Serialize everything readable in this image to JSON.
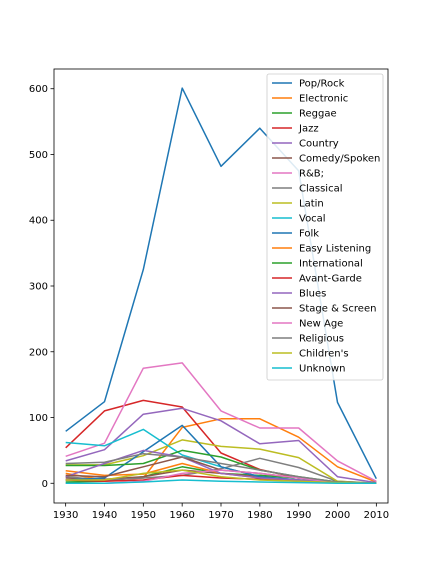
{
  "chart_data": {
    "type": "line",
    "x": [
      1930,
      1940,
      1950,
      1960,
      1970,
      1980,
      1990,
      2000,
      2010
    ],
    "xlim": [
      1927,
      2013
    ],
    "ylim": [
      -30,
      630
    ],
    "xticks": [
      1930,
      1940,
      1950,
      1960,
      1970,
      1980,
      1990,
      2000,
      2010
    ],
    "yticks": [
      0,
      100,
      200,
      300,
      400,
      500,
      600
    ],
    "grid": false,
    "legend_position": "upper-right",
    "series": [
      {
        "name": "Pop/Rock",
        "color": "#1f77b4",
        "values": [
          79,
          124,
          325,
          601,
          482,
          540,
          475,
          123,
          7
        ]
      },
      {
        "name": "Electronic",
        "color": "#ff7f0e",
        "values": [
          15,
          5,
          8,
          85,
          98,
          98,
          70,
          25,
          2
        ]
      },
      {
        "name": "Reggae",
        "color": "#2ca02c",
        "values": [
          2,
          3,
          10,
          25,
          15,
          12,
          8,
          2,
          0
        ]
      },
      {
        "name": "Jazz",
        "color": "#d62728",
        "values": [
          54,
          110,
          126,
          116,
          46,
          21,
          8,
          2,
          0
        ]
      },
      {
        "name": "Country",
        "color": "#9467bd",
        "values": [
          34,
          51,
          105,
          114,
          95,
          60,
          65,
          10,
          1
        ]
      },
      {
        "name": "Comedy/Spoken",
        "color": "#8c564b",
        "values": [
          8,
          6,
          10,
          20,
          15,
          10,
          5,
          1,
          0
        ]
      },
      {
        "name": "R&B;",
        "color": "#e377c2",
        "values": [
          41,
          61,
          175,
          183,
          110,
          84,
          84,
          34,
          3
        ]
      },
      {
        "name": "Classical",
        "color": "#7f7f7f",
        "values": [
          10,
          5,
          8,
          12,
          22,
          38,
          24,
          3,
          0
        ]
      },
      {
        "name": "Latin",
        "color": "#bcbd22",
        "values": [
          28,
          28,
          42,
          66,
          56,
          52,
          39,
          3,
          0
        ]
      },
      {
        "name": "Vocal",
        "color": "#17becf",
        "values": [
          62,
          57,
          82,
          43,
          25,
          10,
          5,
          1,
          0
        ]
      },
      {
        "name": "Folk",
        "color": "#1f77b4",
        "values": [
          5,
          8,
          48,
          88,
          25,
          10,
          5,
          1,
          0
        ]
      },
      {
        "name": "Easy Listening",
        "color": "#ff7f0e",
        "values": [
          19,
          12,
          14,
          30,
          15,
          8,
          4,
          1,
          0
        ]
      },
      {
        "name": "International",
        "color": "#2ca02c",
        "values": [
          27,
          27,
          30,
          50,
          40,
          20,
          10,
          2,
          0
        ]
      },
      {
        "name": "Avant-Garde",
        "color": "#d62728",
        "values": [
          5,
          3,
          5,
          12,
          8,
          6,
          3,
          1,
          0
        ]
      },
      {
        "name": "Blues",
        "color": "#9467bd",
        "values": [
          10,
          30,
          50,
          40,
          15,
          8,
          5,
          1,
          0
        ]
      },
      {
        "name": "Stage & Screen",
        "color": "#8c564b",
        "values": [
          12,
          10,
          25,
          40,
          20,
          15,
          8,
          2,
          0
        ]
      },
      {
        "name": "New Age",
        "color": "#e377c2",
        "values": [
          0,
          0,
          3,
          15,
          20,
          15,
          8,
          1,
          0
        ]
      },
      {
        "name": "Religious",
        "color": "#7f7f7f",
        "values": [
          30,
          32,
          45,
          40,
          30,
          20,
          10,
          2,
          0
        ]
      },
      {
        "name": "Children's",
        "color": "#bcbd22",
        "values": [
          5,
          5,
          15,
          20,
          10,
          5,
          3,
          1,
          0
        ]
      },
      {
        "name": "Unknown",
        "color": "#17becf",
        "values": [
          0,
          0,
          2,
          5,
          3,
          2,
          1,
          0,
          0
        ]
      }
    ]
  }
}
